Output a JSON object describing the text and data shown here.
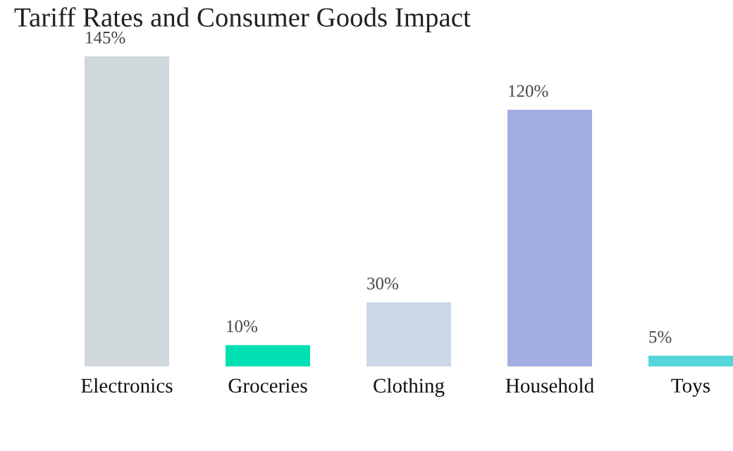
{
  "chart_data": {
    "type": "bar",
    "title": "Tariff Rates and Consumer Goods Impact",
    "categories": [
      "Electronics",
      "Groceries",
      "Clothing",
      "Household",
      "Toys"
    ],
    "values": [
      145,
      10,
      30,
      120,
      5
    ],
    "value_labels": [
      "145%",
      "10%",
      "30%",
      "120%",
      "5%"
    ],
    "colors": [
      "#d0d8db",
      "#00e0b2",
      "#ccd8e6",
      "#a3aee0",
      "#55d5dc"
    ],
    "grid": false,
    "legend": false
  }
}
